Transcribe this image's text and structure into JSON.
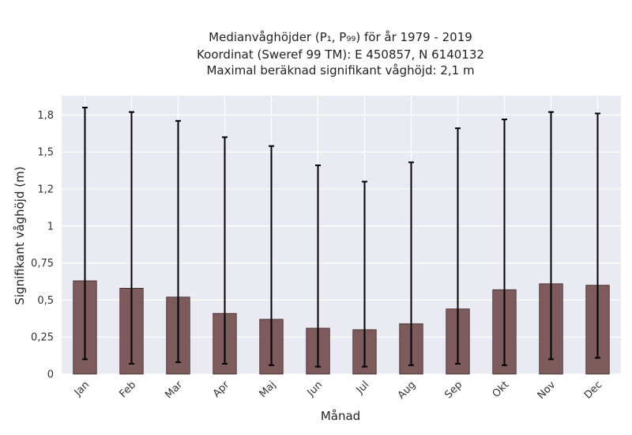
{
  "chart_data": {
    "type": "bar",
    "title_lines": [
      "Medianvåghöjder (P₁, P₉₉) för år 1979 - 2019",
      "Koordinat (Sweref 99 TM): E 450857, N 6140132",
      "Maximal beräknad signifikant våghöjd: 2,1 m"
    ],
    "xlabel": "Månad",
    "ylabel": "Signifikant våghöjd (m)",
    "categories": [
      "Jan",
      "Feb",
      "Mar",
      "Apr",
      "Maj",
      "Jun",
      "Jul",
      "Aug",
      "Sep",
      "Okt",
      "Nov",
      "Dec"
    ],
    "values": [
      0.63,
      0.58,
      0.52,
      0.41,
      0.37,
      0.31,
      0.3,
      0.34,
      0.44,
      0.57,
      0.61,
      0.6
    ],
    "p1": [
      0.1,
      0.07,
      0.08,
      0.07,
      0.06,
      0.05,
      0.05,
      0.06,
      0.07,
      0.06,
      0.1,
      0.11
    ],
    "p99": [
      1.8,
      1.77,
      1.71,
      1.6,
      1.54,
      1.41,
      1.3,
      1.43,
      1.66,
      1.72,
      1.77,
      1.76
    ],
    "ylim": [
      0,
      1.88
    ],
    "yticks": [
      0,
      0.25,
      0.5,
      0.75,
      1,
      1.25,
      1.5,
      1.75
    ],
    "ytick_labels": [
      "0",
      "0,25",
      "0,5",
      "0,75",
      "1",
      "1,2",
      "1,5",
      "1,8"
    ],
    "grid": true,
    "colors": {
      "bar": "#7d5a5b",
      "bar_edge": "#3d2a2a",
      "plot_background": "#eaeaf2",
      "grid": "#ffffff",
      "errorbar": "#000000"
    }
  }
}
